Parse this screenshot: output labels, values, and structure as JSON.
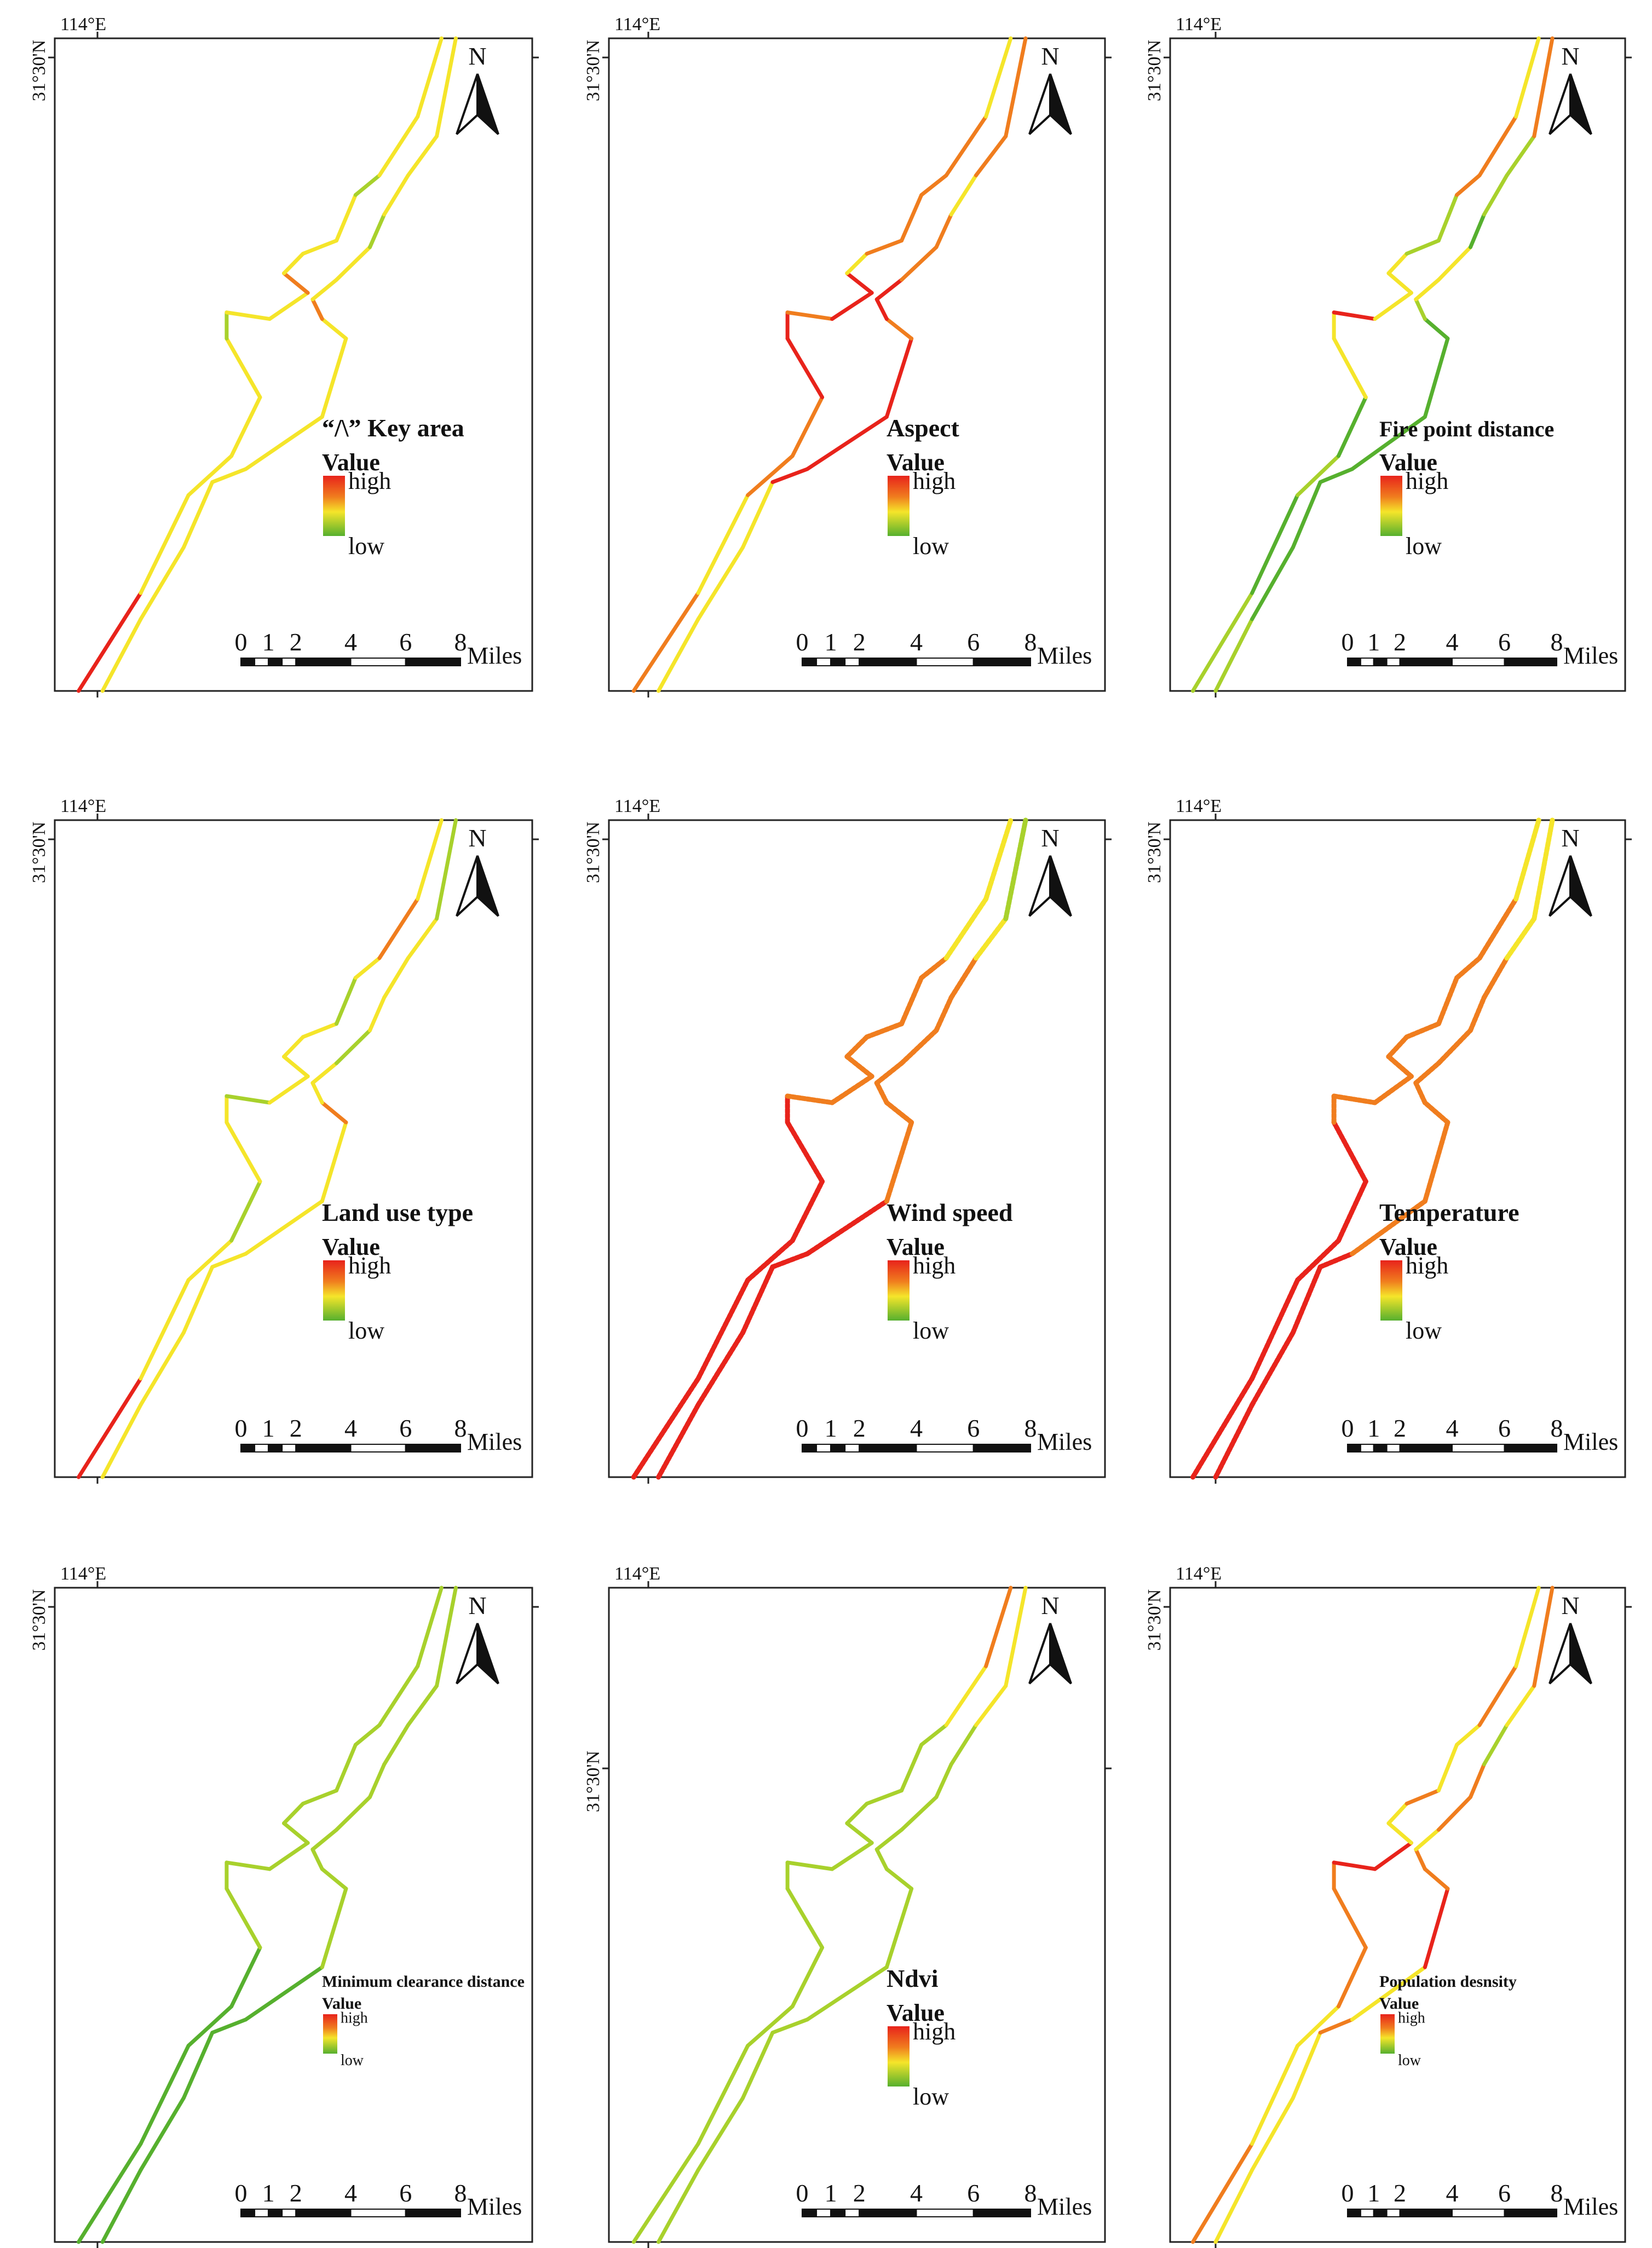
{
  "figure": {
    "north_label": "N",
    "lon_label": "114°E",
    "lat_label": "31°30'N",
    "legend_value_label": "Value",
    "legend_high": "high",
    "legend_low": "low",
    "scale_ticks": [
      "0",
      "1",
      "2",
      "4",
      "6",
      "8"
    ],
    "scale_unit": "Miles",
    "colors": {
      "high": "#e8231b",
      "mid_high": "#f07d1e",
      "mid": "#f5e52a",
      "mid_low": "#a8d12c",
      "low": "#56b02e",
      "frame": "#222222"
    }
  },
  "panels": [
    {
      "title": "“/\\” Key area",
      "layer": "key_area"
    },
    {
      "title": "Aspect",
      "layer": "aspect"
    },
    {
      "title": "Fire point distance",
      "layer": "fire_point_distance"
    },
    {
      "title": "Land use type",
      "layer": "land_use_type"
    },
    {
      "title": "Wind speed",
      "layer": "wind_speed"
    },
    {
      "title": "Temperature",
      "layer": "temperature"
    },
    {
      "title": "Minimum clearance distance",
      "layer": "minimum_clearance_distance"
    },
    {
      "title": "Ndvi",
      "layer": "ndvi"
    },
    {
      "title": "Population desnsity",
      "layer": "population_density"
    }
  ]
}
